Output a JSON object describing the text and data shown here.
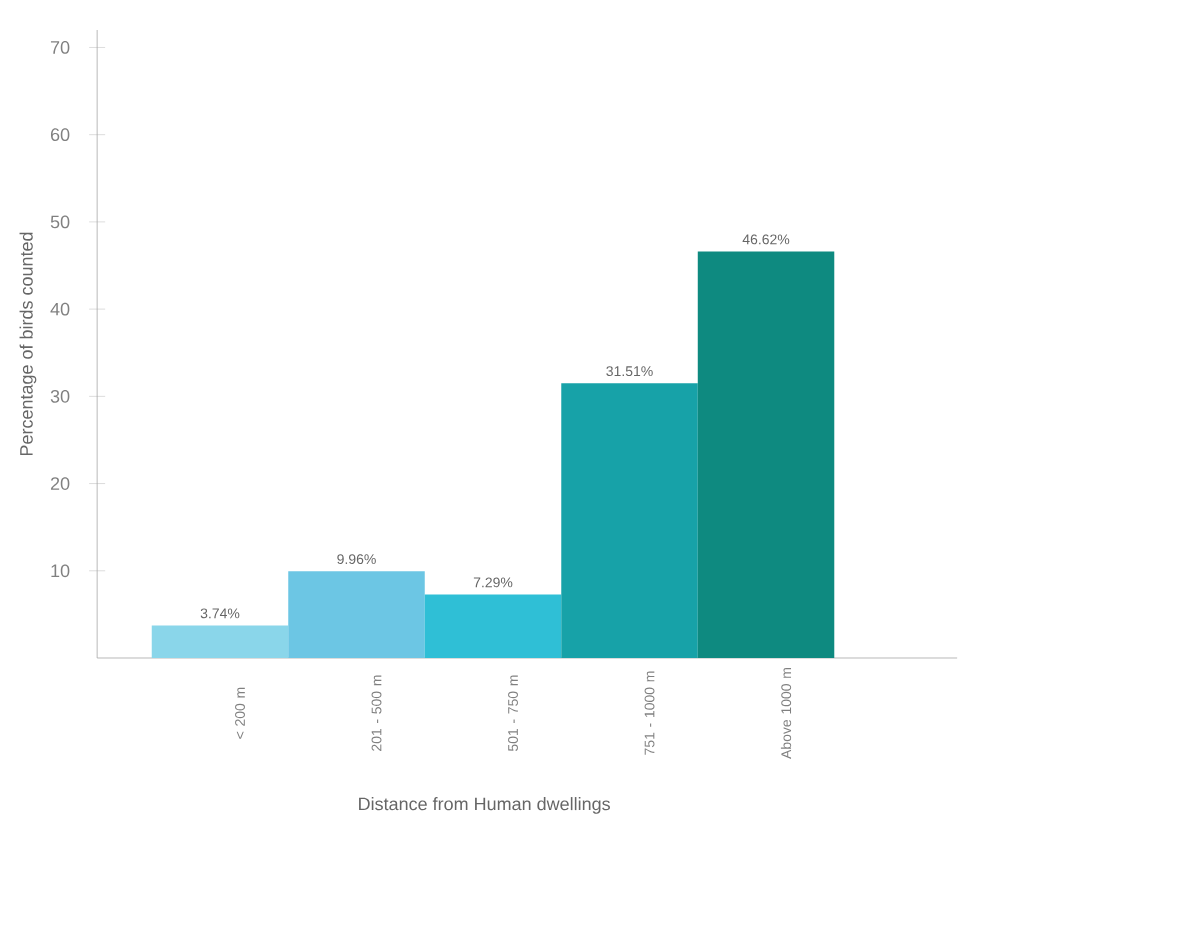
{
  "chart_data": {
    "type": "bar",
    "xlabel": "Distance from Human dwellings",
    "ylabel": "Percentage of birds counted",
    "categories": [
      "< 200 m",
      "201 - 500 m",
      "501 - 750 m",
      "751 - 1000 m",
      "Above 1000 m"
    ],
    "values": [
      3.74,
      9.96,
      7.29,
      31.51,
      46.62
    ],
    "value_labels": [
      "3.74%",
      "9.96%",
      "7.29%",
      "31.51%",
      "46.62%"
    ],
    "colors": [
      "#8ad6ea",
      "#6cc6e4",
      "#2fbfd6",
      "#17a2a8",
      "#0e8a80"
    ],
    "ylim": [
      0,
      72
    ],
    "yticks": [
      10,
      20,
      30,
      40,
      50,
      60,
      70
    ]
  }
}
